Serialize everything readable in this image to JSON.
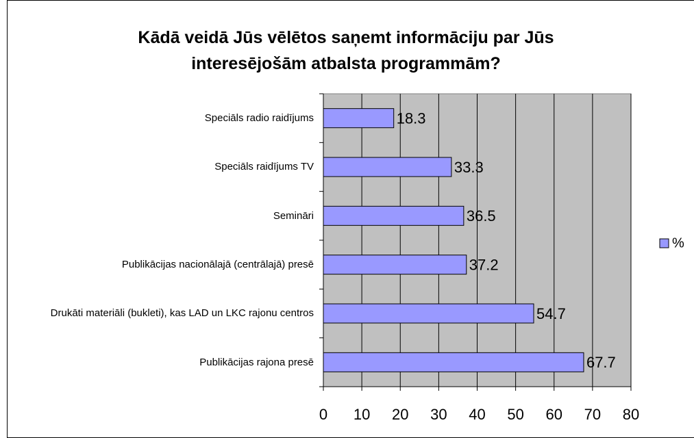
{
  "chart_data": {
    "type": "bar",
    "orientation": "horizontal",
    "title": "Kādā veidā Jūs vēlētos saņemt informāciju par Jūs interesējošām atbalsta programmām?",
    "categories": [
      "Speciāls radio raidījums",
      "Speciāls raidījums TV",
      "Semināri",
      "Publikācijas nacionālajā (centrālajā) presē",
      "Drukāti materiāli (bukleti), kas LAD un LKC rajonu centros",
      "Publikācijas rajona presē"
    ],
    "series": [
      {
        "name": "%",
        "color": "#9999ff",
        "values": [
          18.3,
          33.3,
          36.5,
          37.2,
          54.7,
          67.7
        ]
      }
    ],
    "xlim": [
      0,
      80
    ],
    "xticks": [
      0,
      10,
      20,
      30,
      40,
      50,
      60,
      70,
      80
    ],
    "grid": true,
    "legend": "right",
    "plot_background": "#c0c0c0"
  }
}
